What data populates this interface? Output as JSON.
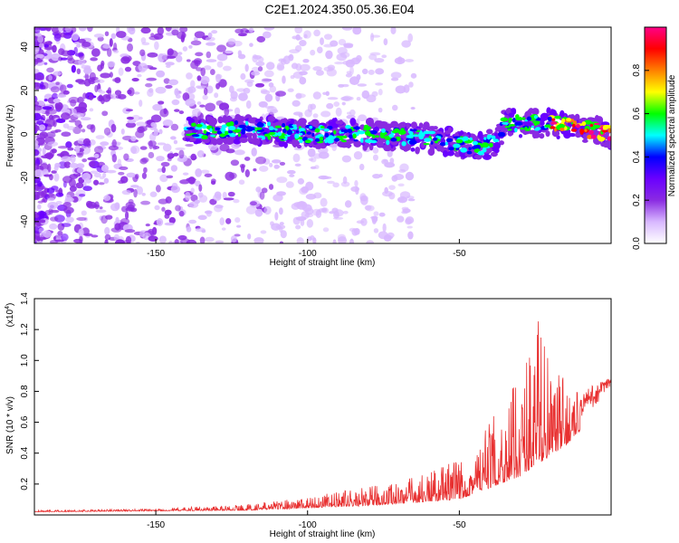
{
  "title": "C2E1.2024.350.05.36.E04",
  "chart_data": [
    {
      "type": "heatmap",
      "xlabel": "Height of straight line (km)",
      "ylabel": "Frequency (Hz)",
      "xlim": [
        -190,
        0
      ],
      "ylim": [
        -50,
        49
      ],
      "xticks": [
        -150,
        -100,
        -50
      ],
      "yticks": [
        -40,
        -20,
        0,
        20,
        40
      ],
      "colorbar": {
        "label": "Normalized spectral amplitude",
        "range": [
          0,
          1
        ],
        "ticks": [
          "0.0",
          "0.2",
          "0.4",
          "0.6",
          "0.8"
        ],
        "colors": [
          "#ffffff",
          "#d8b8ff",
          "#8a2be2",
          "#6a00ff",
          "#0000ff",
          "#00ffff",
          "#00ff00",
          "#ffff00",
          "#ff8000",
          "#ff0000",
          "#ff0088"
        ]
      },
      "signal_band": [
        {
          "x": -140,
          "freq": 2
        },
        {
          "x": -120,
          "freq": 2
        },
        {
          "x": -100,
          "freq": 0
        },
        {
          "x": -80,
          "freq": 0
        },
        {
          "x": -60,
          "freq": -2
        },
        {
          "x": -45,
          "freq": -6
        },
        {
          "x": -38,
          "freq": -4
        },
        {
          "x": -35,
          "freq": 5
        },
        {
          "x": -20,
          "freq": 5
        },
        {
          "x": -10,
          "freq": 3
        },
        {
          "x": 0,
          "freq": 0
        }
      ]
    },
    {
      "type": "line",
      "xlabel": "Height of straight line (km)",
      "ylabel": "SNR (10 * v/v)",
      "multiplier": "(x10",
      "multiplier_exp": "4",
      "multiplier_close": ")",
      "xlim": [
        -190,
        0
      ],
      "ylim": [
        0,
        1.4
      ],
      "xticks": [
        -150,
        -100,
        -50
      ],
      "yticks": [
        "0.2",
        "0.4",
        "0.6",
        "0.8",
        "1.0",
        "1.2",
        "1.4"
      ],
      "color": "#e83030",
      "envelope": [
        {
          "x": -190,
          "y": 0.03
        },
        {
          "x": -150,
          "y": 0.04
        },
        {
          "x": -120,
          "y": 0.07
        },
        {
          "x": -100,
          "y": 0.12
        },
        {
          "x": -80,
          "y": 0.18
        },
        {
          "x": -60,
          "y": 0.28
        },
        {
          "x": -50,
          "y": 0.38
        },
        {
          "x": -40,
          "y": 0.6
        },
        {
          "x": -30,
          "y": 0.9
        },
        {
          "x": -24,
          "y": 1.4
        },
        {
          "x": -20,
          "y": 0.95
        },
        {
          "x": -10,
          "y": 0.8
        },
        {
          "x": 0,
          "y": 0.9
        }
      ],
      "baseline": [
        {
          "x": -190,
          "y": 0.02
        },
        {
          "x": -120,
          "y": 0.03
        },
        {
          "x": -80,
          "y": 0.06
        },
        {
          "x": -50,
          "y": 0.1
        },
        {
          "x": -30,
          "y": 0.25
        },
        {
          "x": -15,
          "y": 0.45
        },
        {
          "x": -5,
          "y": 0.65
        },
        {
          "x": 0,
          "y": 0.8
        }
      ]
    }
  ]
}
